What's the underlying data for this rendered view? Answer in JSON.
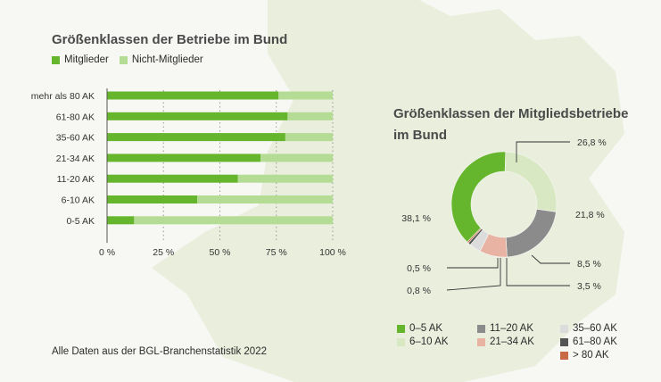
{
  "colors": {
    "background": "#f7f8f3",
    "map_shape": "#e9eedd",
    "mitglieder": "#66b62d",
    "nicht_mitglieder": "#b4dc95"
  },
  "footer": "Alle Daten aus der BGL-Branchenstatistik 2022",
  "chart_data": [
    {
      "type": "bar",
      "orientation": "horizontal",
      "stacked": true,
      "title": "Größenklassen der Betriebe im Bund",
      "legend_position": "top-left",
      "categories": [
        "mehr als 80 AK",
        "61-80 AK",
        "35-60 AK",
        "21-34 AK",
        "11-20 AK",
        "6-10 AK",
        "0-5 AK"
      ],
      "series": [
        {
          "name": "Mitglieder",
          "color": "#66b62d",
          "values": [
            76,
            80,
            79,
            68,
            58,
            40,
            12
          ]
        },
        {
          "name": "Nicht-Mitglieder",
          "color": "#b4dc95",
          "values": [
            24,
            20,
            21,
            32,
            42,
            60,
            88
          ]
        }
      ],
      "xlim": [
        0,
        100
      ],
      "xticks": [
        "0 %",
        "25 %",
        "50 %",
        "75 %",
        "100 %"
      ],
      "grid": "dotted vertical"
    },
    {
      "type": "pie",
      "donut": true,
      "title": "Größenklassen der Mitgliedsbetriebe im Bund",
      "legend_position": "bottom",
      "categories": [
        "0–5 AK",
        "6–10 AK",
        "11–20 AK",
        "21–34 AK",
        "35–60 AK",
        "61–80 AK",
        "> 80 AK"
      ],
      "values": [
        38.1,
        26.8,
        21.8,
        8.5,
        3.5,
        0.8,
        0.5
      ],
      "labels": [
        "38,1 %",
        "26,8 %",
        "21,8 %",
        "8,5 %",
        "3,5 %",
        "0,8 %",
        "0,5 %"
      ],
      "colors": [
        "#66b62d",
        "#d7e8c3",
        "#8b8b8b",
        "#e8b3a3",
        "#dcdcdc",
        "#555555",
        "#c96a47"
      ]
    }
  ]
}
